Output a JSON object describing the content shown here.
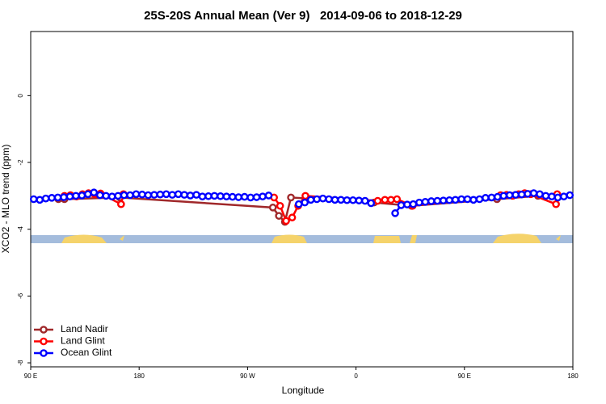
{
  "chart_data": {
    "type": "line",
    "title": "25S-20S Annual Mean (Ver 9)   2014-09-06 to 2018-12-29",
    "x_label": "Longitude",
    "y_label": "XCO2 - MLO trend (ppm)",
    "xlim": [
      90,
      540
    ],
    "ylim": [
      -8.12,
      1.92
    ],
    "xticks": [
      {
        "value": 90,
        "label": "90 E"
      },
      {
        "value": 180,
        "label": "180"
      },
      {
        "value": 270,
        "label": "90 W"
      },
      {
        "value": 360,
        "label": "0"
      },
      {
        "value": 450,
        "label": "90 E"
      },
      {
        "value": 540,
        "label": "180"
      }
    ],
    "yticks": [
      -8,
      -6,
      -4,
      -2,
      0
    ],
    "legend": "lower left",
    "series": [
      {
        "name": "Land Nadir",
        "color": "#a0282a",
        "x": [
          113,
          118,
          164,
          291,
          296,
          301,
          306,
          375,
          406,
          477,
          511
        ],
        "values": [
          -3.1,
          -3.1,
          -3.05,
          -3.35,
          -3.6,
          -3.78,
          -3.05,
          -3.2,
          -3.3,
          -3.1,
          -3.0
        ]
      },
      {
        "name": "Land Glint",
        "color": "#ff0000",
        "x": [
          118,
          123,
          128,
          133,
          138,
          143,
          148,
          165,
          167,
          292,
          297,
          302,
          307,
          312,
          318,
          378,
          384,
          389,
          394,
          407,
          480,
          485,
          490,
          495,
          500,
          505,
          526,
          527
        ],
        "values": [
          -3.0,
          -2.98,
          -3.02,
          -2.95,
          -2.92,
          -2.95,
          -2.93,
          -3.25,
          -2.95,
          -3.05,
          -3.3,
          -3.75,
          -3.65,
          -3.3,
          -3.0,
          -3.15,
          -3.12,
          -3.12,
          -3.1,
          -3.3,
          -2.98,
          -2.97,
          -3.0,
          -2.95,
          -2.92,
          -2.95,
          -3.25,
          -2.95
        ]
      },
      {
        "name": "Ocean Glint",
        "color": "#0000ff",
        "x": [
          92.5,
          97.5,
          102.5,
          107.5,
          112.5,
          117.5,
          122.5,
          127.5,
          132.5,
          137.5,
          142.5,
          147.5,
          152.5,
          157.5,
          162.5,
          167.5,
          172.5,
          177.5,
          182.5,
          187.5,
          192.5,
          197.5,
          202.5,
          207.5,
          212.5,
          217.5,
          222.5,
          227.5,
          232.5,
          237.5,
          242.5,
          247.5,
          252.5,
          257.5,
          262.5,
          267.5,
          272.5,
          277.5,
          282.5,
          287.5,
          292.5,
          297.5,
          302.5,
          307.5,
          312.5,
          317.5,
          322.5,
          327.5,
          332.5,
          337.5,
          342.5,
          347.5,
          352.5,
          357.5,
          362.5,
          367.5,
          372.5,
          377.5,
          382.5,
          387.5,
          392.5,
          397.5,
          402.5,
          407.5,
          412.5,
          417.5,
          422.5,
          427.5,
          432.5,
          437.5,
          442.5,
          447.5,
          452.5,
          457.5,
          462.5,
          467.5,
          472.5,
          477.5,
          482.5,
          487.5,
          492.5,
          497.5,
          502.5,
          507.5,
          512.5,
          517.5,
          522.5,
          527.5,
          532.5,
          537.5
        ],
        "values": [
          -3.1,
          -3.12,
          -3.08,
          -3.06,
          -3.05,
          -3.04,
          -3.02,
          -3.0,
          -2.99,
          -2.95,
          -2.9,
          -2.98,
          -3.0,
          -3.02,
          -3.0,
          -2.98,
          -2.98,
          -2.95,
          -2.96,
          -2.98,
          -2.97,
          -2.96,
          -2.95,
          -2.97,
          -2.95,
          -2.97,
          -2.99,
          -2.97,
          -3.02,
          -3.01,
          -3.0,
          -3.01,
          -3.02,
          -3.03,
          -3.04,
          -3.03,
          -3.05,
          -3.04,
          -3.02,
          -2.99,
          null,
          null,
          null,
          null,
          -3.25,
          -3.2,
          -3.12,
          -3.1,
          -3.08,
          -3.1,
          -3.12,
          -3.12,
          -3.13,
          -3.13,
          -3.14,
          -3.15,
          -3.22,
          null,
          null,
          null,
          -3.52,
          -3.28,
          -3.26,
          -3.25,
          -3.2,
          -3.18,
          -3.16,
          -3.15,
          -3.14,
          -3.13,
          -3.12,
          -3.1,
          -3.1,
          -3.12,
          -3.1,
          -3.06,
          -3.05,
          -3.03,
          -3.0,
          -2.98,
          -2.97,
          -2.96,
          -2.94,
          -2.92,
          -2.95,
          -3.0,
          -3.02,
          -3.05,
          -3.02,
          -2.98
        ]
      }
    ]
  }
}
